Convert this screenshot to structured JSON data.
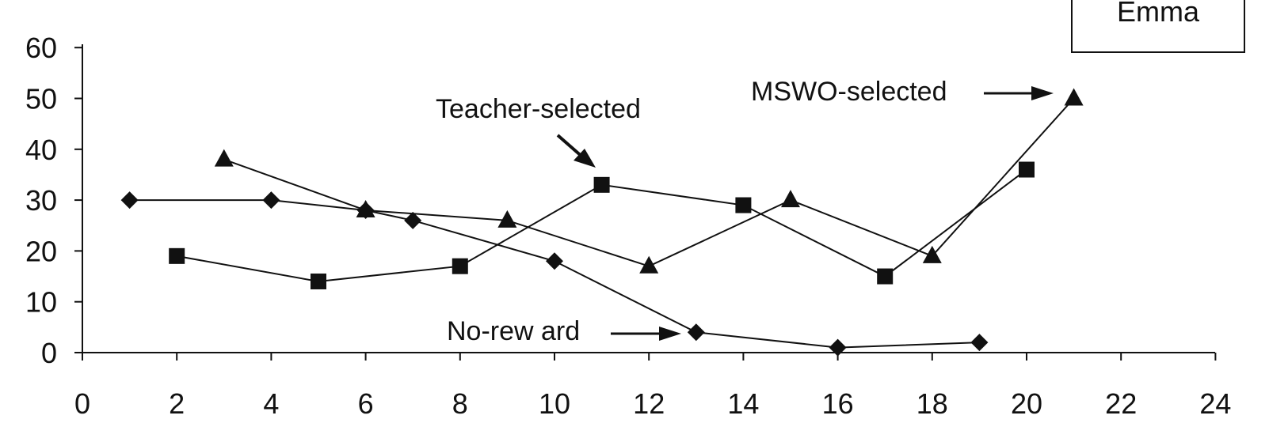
{
  "chart_data": {
    "type": "line",
    "title": "Emma",
    "xlabel": "",
    "ylabel": "",
    "xlim": [
      0,
      24
    ],
    "ylim": [
      0,
      60
    ],
    "x_ticks": [
      0,
      2,
      4,
      6,
      8,
      10,
      12,
      14,
      16,
      18,
      20,
      22,
      24
    ],
    "y_ticks": [
      0,
      10,
      20,
      30,
      40,
      50,
      60
    ],
    "grid": false,
    "color": "#111111",
    "series": [
      {
        "name": "No-reward",
        "marker": "diamond",
        "x": [
          1,
          4,
          6,
          7,
          10,
          13,
          16,
          19
        ],
        "y": [
          30,
          30,
          28,
          26,
          18,
          4,
          1,
          2
        ]
      },
      {
        "name": "Teacher-selected",
        "marker": "square",
        "x": [
          2,
          5,
          8,
          11,
          14,
          17,
          20
        ],
        "y": [
          19,
          14,
          17,
          33,
          29,
          15,
          36
        ]
      },
      {
        "name": "MSWO-selected",
        "marker": "triangle",
        "x": [
          3,
          6,
          9,
          12,
          15,
          18,
          21
        ],
        "y": [
          38,
          28,
          26,
          17,
          30,
          19,
          50
        ]
      }
    ],
    "annotations": [
      {
        "id": "teacher",
        "text": "Teacher-selected"
      },
      {
        "id": "mswo",
        "text": "MSWO-selected"
      },
      {
        "id": "noreward",
        "text": "No-rew ard"
      }
    ]
  }
}
